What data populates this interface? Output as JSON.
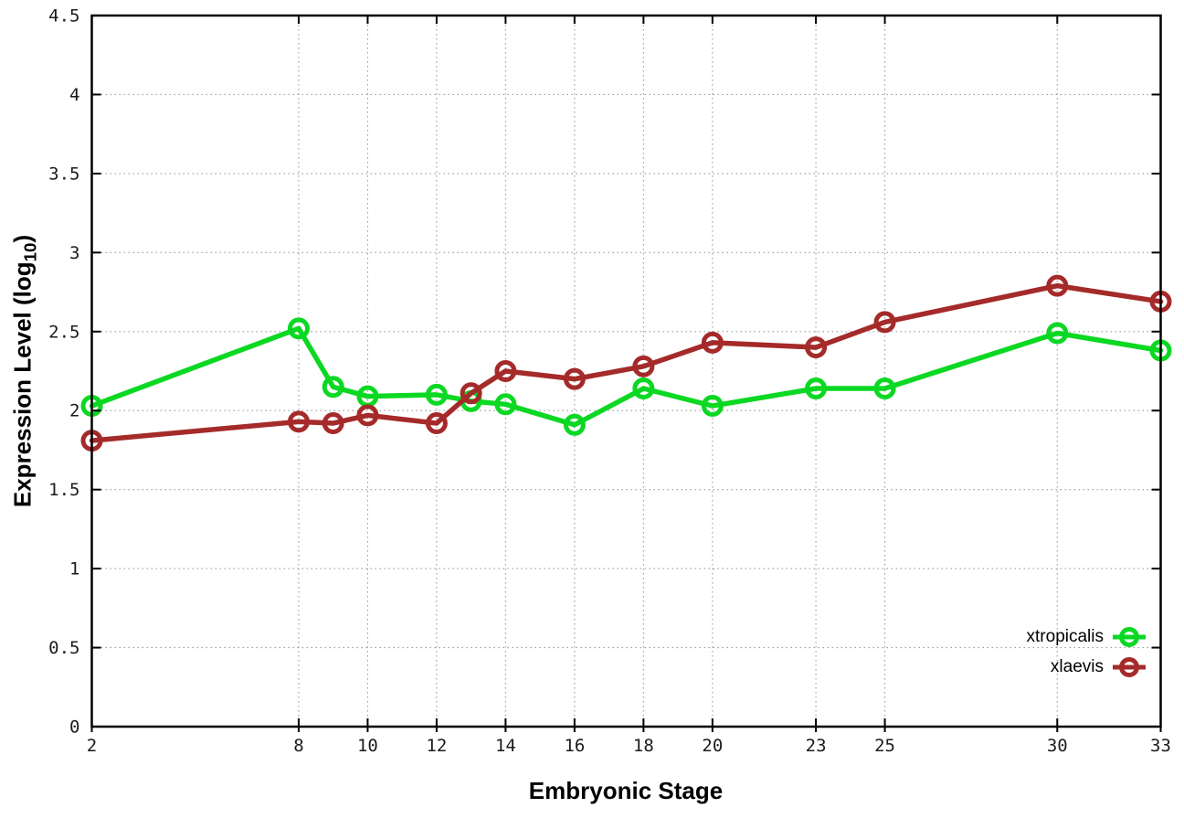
{
  "chart_data": {
    "type": "line",
    "title": "",
    "xlabel": "Embryonic Stage",
    "ylabel_prefix": "Expression Level (log",
    "ylabel_sub": "10",
    "ylabel_suffix": ")",
    "x": [
      2,
      8,
      9,
      10,
      12,
      13,
      14,
      16,
      18,
      20,
      23,
      25,
      30,
      33
    ],
    "xlim": [
      2,
      33
    ],
    "ylim": [
      0,
      4.5
    ],
    "xticks": [
      2,
      8,
      10,
      12,
      14,
      16,
      18,
      20,
      23,
      25,
      30,
      33
    ],
    "xtick_labels": [
      "2",
      "8",
      "10",
      "12",
      "14",
      "16",
      "18",
      "20",
      "23",
      "25",
      "30",
      "33"
    ],
    "yticks": [
      0,
      0.5,
      1,
      1.5,
      2,
      2.5,
      3,
      3.5,
      4,
      4.5
    ],
    "ytick_labels": [
      "0",
      "0.5",
      "1",
      "1.5",
      "2",
      "2.5",
      "3",
      "3.5",
      "4",
      "4.5"
    ],
    "grid": true,
    "legend_position": "bottom-right",
    "marker": "open-circle",
    "series": [
      {
        "name": "xtropicalis",
        "color": "#0bd822",
        "values": [
          2.03,
          2.52,
          2.15,
          2.09,
          2.1,
          2.06,
          2.04,
          1.91,
          2.14,
          2.03,
          2.14,
          2.14,
          2.49,
          2.38
        ]
      },
      {
        "name": "xlaevis",
        "color": "#a52a2a",
        "values": [
          1.81,
          1.93,
          1.92,
          1.97,
          1.92,
          2.11,
          2.25,
          2.2,
          2.28,
          2.43,
          2.4,
          2.56,
          2.79,
          2.69
        ]
      }
    ],
    "style": {
      "grid_color": "#9a9a9a",
      "border_color": "#000000",
      "tick_label_color": "#1c1c1c",
      "background": "#ffffff"
    }
  }
}
